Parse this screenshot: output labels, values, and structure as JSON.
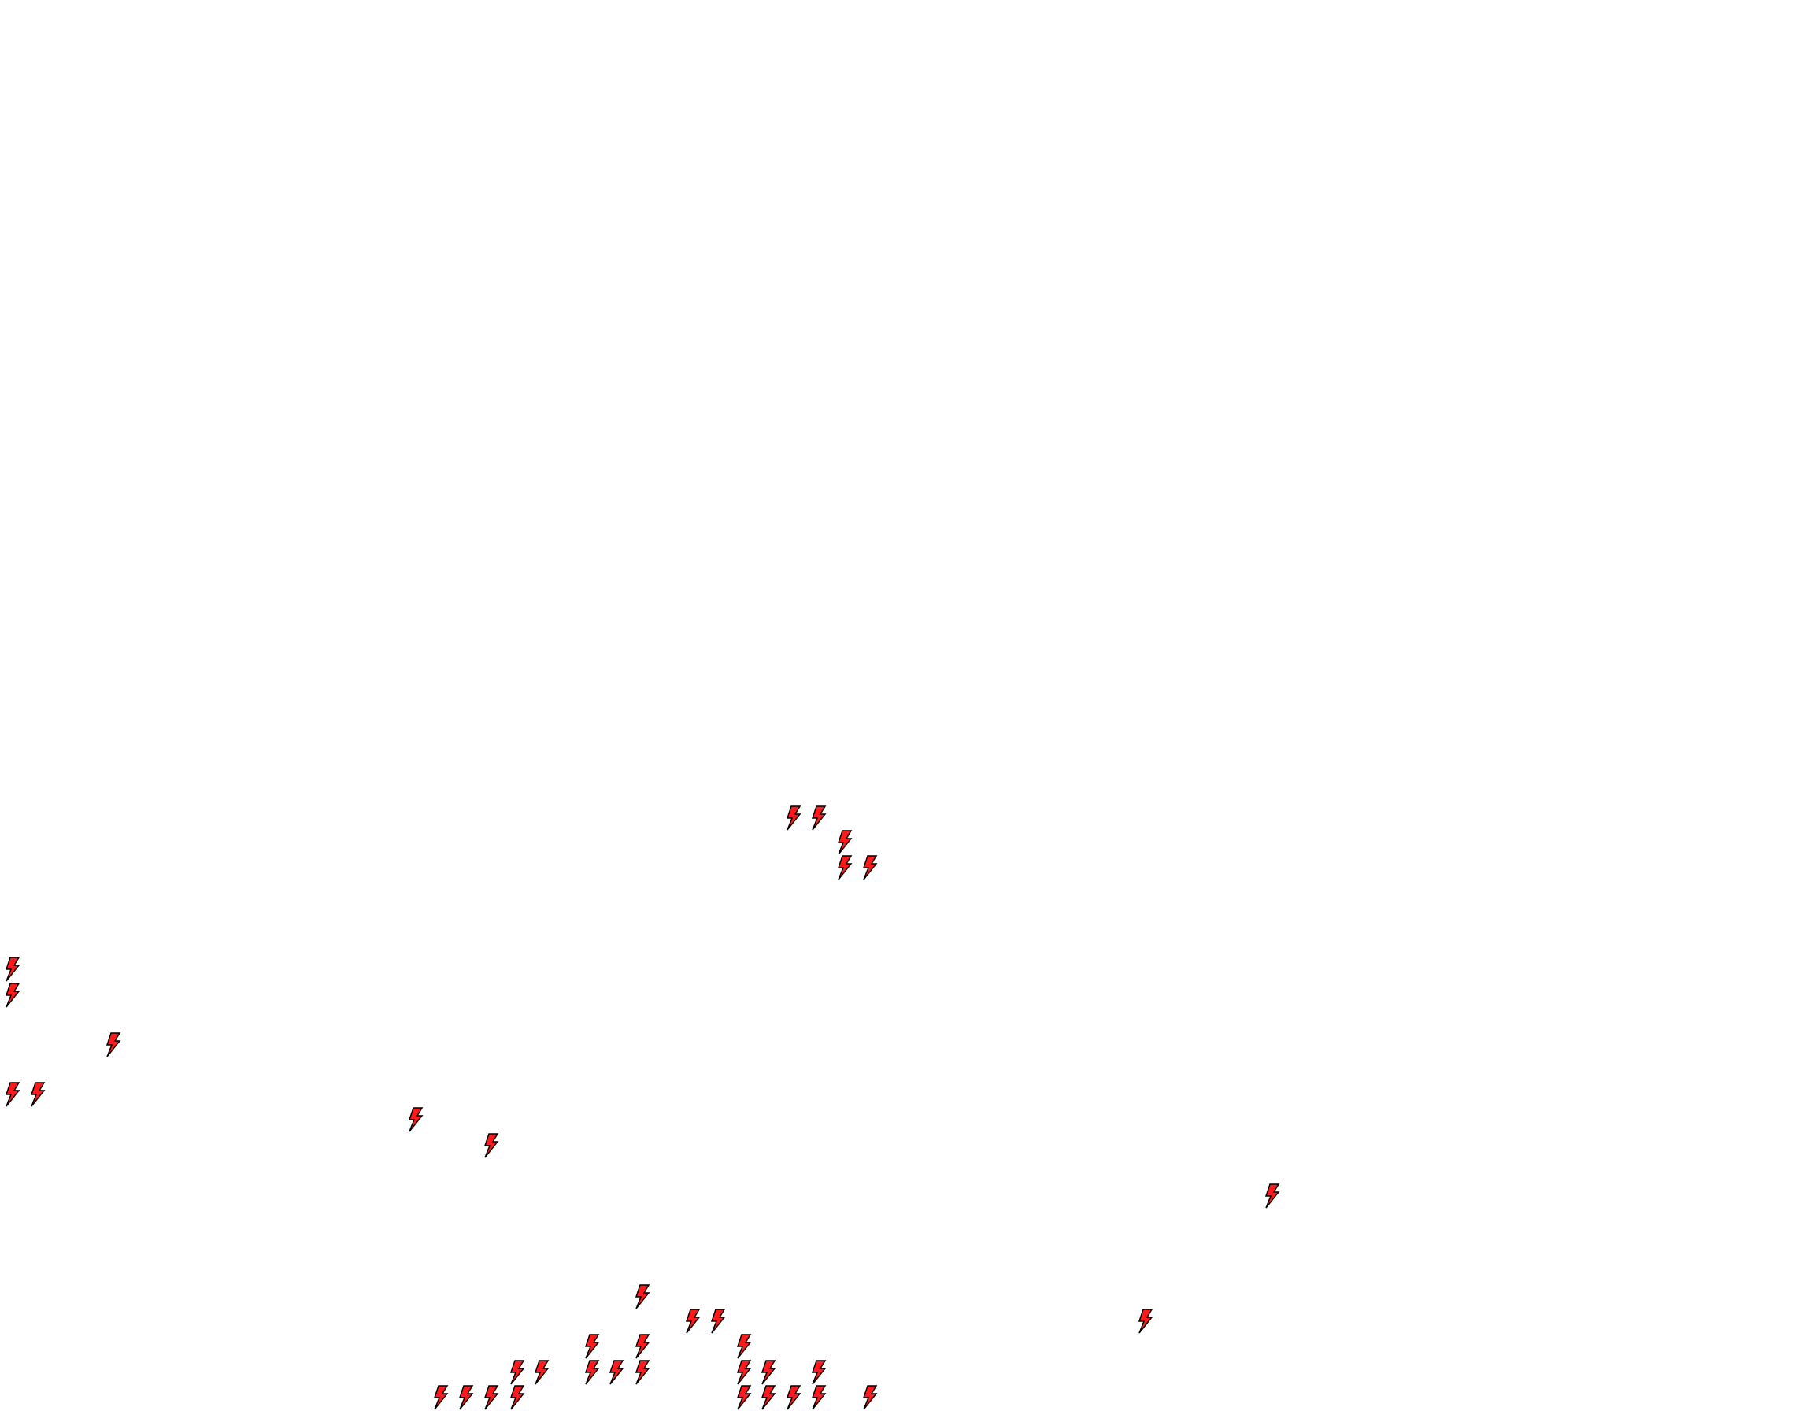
{
  "map": {
    "marker_icon": "lightning-bolt-icon",
    "marker_fill": "#ff1a1a",
    "marker_stroke": "#000000",
    "background": "#ffffff"
  }
}
